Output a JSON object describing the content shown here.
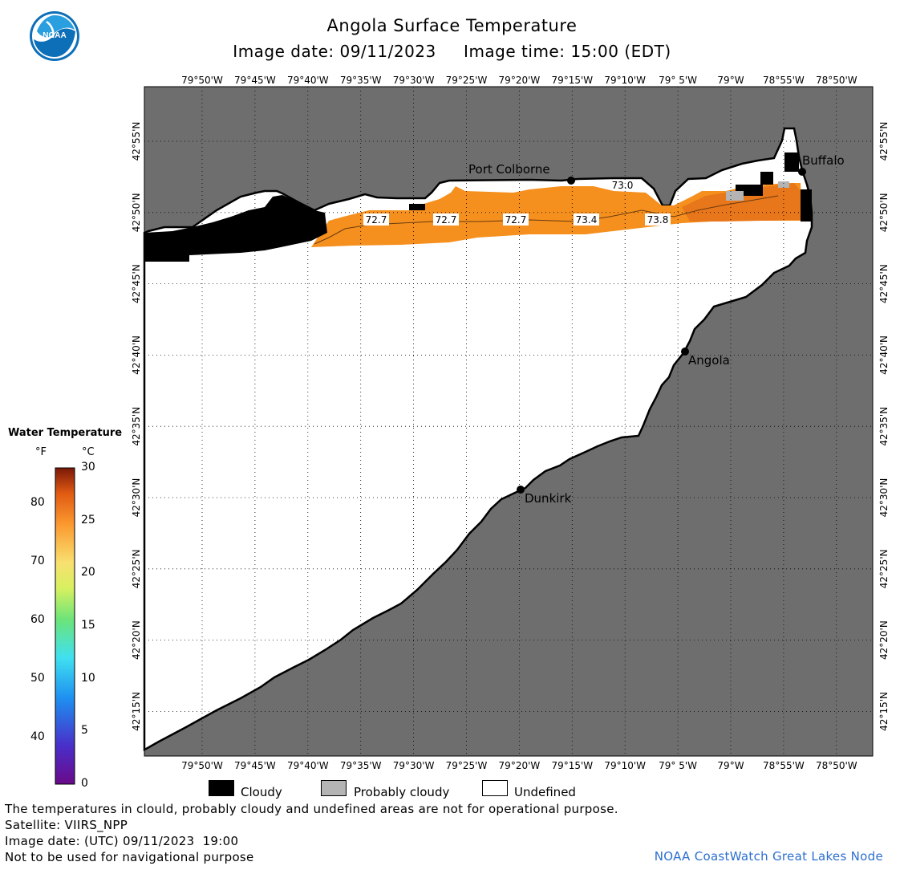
{
  "header": {
    "title": "Angola Surface Temperature",
    "image_date_line": "Image date: 09/11/2023     Image time: 15:00 (EDT)"
  },
  "logo": {
    "text": "NOAA",
    "icon": "noaa-logo-icon"
  },
  "map": {
    "lon_labels": [
      "79°50'W",
      "79°45'W",
      "79°40'W",
      "79°35'W",
      "79°30'W",
      "79°25'W",
      "79°20'W",
      "79°15'W",
      "79°10'W",
      "79° 5'W",
      "79°W",
      "78°55'W",
      "78°50'W"
    ],
    "lat_labels": [
      "42°55'N",
      "42°50'N",
      "42°45'N",
      "42°40'N",
      "42°35'N",
      "42°30'N",
      "42°25'N",
      "42°20'N",
      "42°15'N"
    ],
    "places": [
      "Port Colborne",
      "Buffalo",
      "Angola",
      "Dunkirk"
    ],
    "temp_labels": [
      "72.7",
      "72.7",
      "72.7",
      "73.4",
      "73.8",
      "73.0"
    ],
    "colors": {
      "land": "#6e6e6e",
      "water_warm": "#f5901e",
      "cloud": "#000000",
      "undefined": "#ffffff"
    }
  },
  "legend": {
    "title": "Water Temperature",
    "unit_f": "°F",
    "unit_c": "°C",
    "f_ticks": [
      "80",
      "70",
      "60",
      "50",
      "40"
    ],
    "c_ticks": [
      "30",
      "25",
      "20",
      "15",
      "10",
      "5",
      "0"
    ]
  },
  "key": {
    "cloudy": "Cloudy",
    "probably_cloudy": "Probably cloudy",
    "undefined": "Undefined"
  },
  "footer": {
    "line1": "The temperatures in clould, probably cloudy and undefined areas are not for operational purpose.",
    "line2": "Satellite: VIIRS_NPP",
    "line3": "Image date: (UTC) 09/11/2023  19:00",
    "line4": "Not to be used for navigational purpose",
    "credit": "NOAA CoastWatch Great Lakes Node"
  }
}
